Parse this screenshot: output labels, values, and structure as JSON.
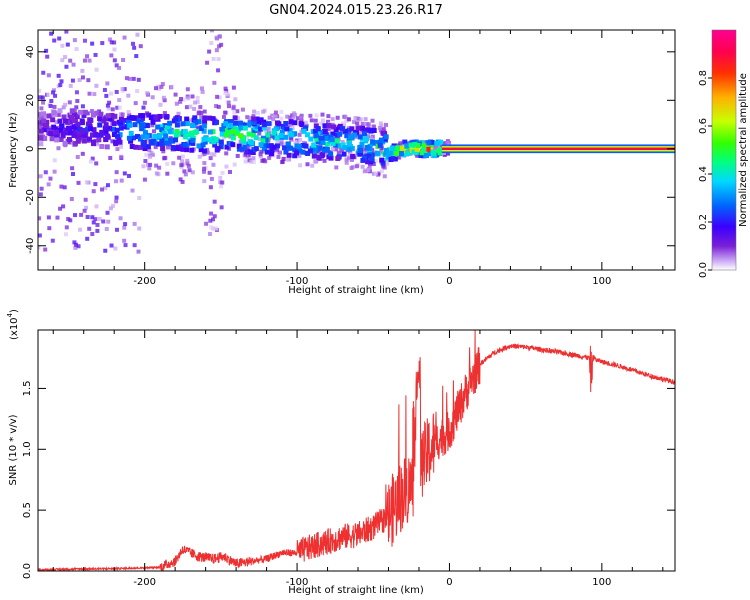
{
  "title": "GN04.2024.015.23.26.R17",
  "chart_data": [
    {
      "type": "heatmap",
      "xlabel": "Height of straight line (km)",
      "ylabel": "Frequency (Hz)",
      "xlim": [
        -270,
        148
      ],
      "ylim": [
        -50,
        49
      ],
      "xticks": [
        -200,
        -100,
        0,
        100
      ],
      "yticks": [
        -40,
        -20,
        0,
        20,
        40
      ],
      "xtick_labels": [
        "-200",
        "-100",
        "0",
        "100"
      ],
      "ytick_labels": [
        "-40",
        "-20",
        "0",
        "20",
        "40"
      ],
      "colorbar": {
        "label": "Normalized spectral amplitude",
        "range": [
          0,
          1
        ],
        "ticks": [
          0.0,
          0.2,
          0.4,
          0.6,
          0.8
        ],
        "tick_labels": [
          "0.0",
          "0.2",
          "0.4",
          "0.6",
          "0.8"
        ],
        "colors": [
          "#ffffff",
          "#c9a6f5",
          "#7a1fd6",
          "#3b00ff",
          "#0066ff",
          "#00d9ff",
          "#00ff80",
          "#33ff00",
          "#c8ff00",
          "#ffb000",
          "#ff3000",
          "#ff0050",
          "#ff0090"
        ]
      },
      "ridge": {
        "x": [
          -270,
          -250,
          -230,
          -210,
          -190,
          -170,
          -150,
          -140,
          -120,
          -100,
          -80,
          -60,
          -45,
          -38,
          -30,
          -20,
          -10,
          -5,
          0,
          10,
          20,
          50,
          100,
          148
        ],
        "y": [
          8,
          9,
          8,
          7,
          7,
          6,
          6,
          6,
          5,
          4,
          3,
          2,
          0,
          -2,
          0,
          0,
          0,
          0,
          1,
          0,
          0,
          0,
          0,
          0
        ],
        "amplitude": [
          0.15,
          0.2,
          0.25,
          0.4,
          0.45,
          0.5,
          0.5,
          0.55,
          0.5,
          0.48,
          0.45,
          0.45,
          0.5,
          0.6,
          0.75,
          0.8,
          0.82,
          0.85,
          0.85,
          0.88,
          0.9,
          0.9,
          0.9,
          0.9
        ]
      }
    },
    {
      "type": "line",
      "xlabel": "Height of straight line (km)",
      "ylabel": "SNR (10 * v/v)",
      "scale_label": "(x10",
      "scale_exp": "4",
      "scale_close": ")",
      "xlim": [
        -270,
        148
      ],
      "ylim": [
        0,
        1.98
      ],
      "xticks": [
        -200,
        -100,
        0,
        100
      ],
      "yticks": [
        0.0,
        0.5,
        1.0,
        1.5
      ],
      "xtick_labels": [
        "-200",
        "-100",
        "0",
        "100"
      ],
      "ytick_labels": [
        "0.0",
        "0.5",
        "1.0",
        "1.5"
      ],
      "series": [
        {
          "color": "#ee3030",
          "x": [
            -270,
            -250,
            -220,
            -190,
            -180,
            -175,
            -165,
            -155,
            -148,
            -140,
            -120,
            -110,
            -100,
            -90,
            -80,
            -70,
            -60,
            -50,
            -40,
            -35,
            -30,
            -25,
            -20,
            -15,
            -10,
            -5,
            0,
            10,
            20,
            30,
            40,
            50,
            60,
            70,
            80,
            88,
            92,
            94,
            97,
            100,
            110,
            120,
            130,
            148
          ],
          "y": [
            0.01,
            0.015,
            0.02,
            0.03,
            0.08,
            0.18,
            0.12,
            0.1,
            0.12,
            0.06,
            0.1,
            0.15,
            0.15,
            0.2,
            0.24,
            0.28,
            0.3,
            0.36,
            0.45,
            0.55,
            0.65,
            0.7,
            0.85,
            0.95,
            1.05,
            1.1,
            1.15,
            1.45,
            1.7,
            1.8,
            1.85,
            1.84,
            1.82,
            1.8,
            1.78,
            1.76,
            1.75,
            1.76,
            1.73,
            1.72,
            1.69,
            1.65,
            1.61,
            1.55
          ]
        }
      ]
    }
  ]
}
